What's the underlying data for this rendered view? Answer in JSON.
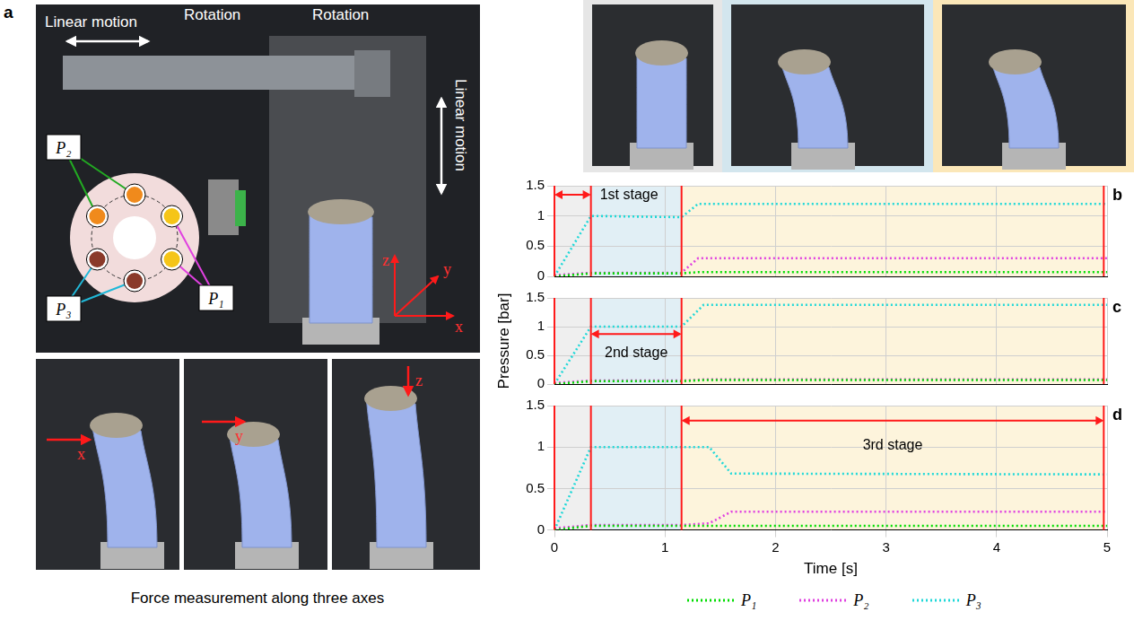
{
  "setup_photo": {
    "panel": "a",
    "labels": [
      "Linear motion",
      "Rotation",
      "Rotation",
      "Linear motion"
    ],
    "chambers": [
      "P₁",
      "P₂",
      "P₃"
    ],
    "axes": [
      "x",
      "y",
      "z"
    ]
  },
  "force_photos": {
    "axes": [
      "x",
      "y",
      "z"
    ],
    "caption": "Force measurement along three axes"
  },
  "chart_data": [
    {
      "type": "line",
      "panel": "b",
      "x": [
        0,
        0.33,
        1.15,
        1.3,
        5
      ],
      "series": [
        {
          "name": "P₁",
          "color": "#00dd00",
          "line_style": "dotted",
          "values": [
            0,
            0.05,
            0.05,
            0.07,
            0.07
          ]
        },
        {
          "name": "P₂",
          "color": "#e040e0",
          "line_style": "dotted",
          "values": [
            0.02,
            0.06,
            0.06,
            0.3,
            0.3
          ]
        },
        {
          "name": "P₃",
          "color": "#20d8d8",
          "line_style": "dotted",
          "values": [
            0,
            1,
            0.98,
            1.2,
            1.2
          ]
        }
      ],
      "xlim": [
        0,
        5
      ],
      "xticks": [
        0,
        1,
        2,
        3,
        4,
        5
      ],
      "ylim": [
        0,
        1.5
      ],
      "yticks": [
        0,
        0.5,
        1,
        1.5
      ],
      "grid": true,
      "tick_labels": "y",
      "stages": [
        0,
        0.33,
        1.15,
        4.97
      ],
      "stage_label": {
        "text": "1st stage",
        "from": 0,
        "to": 0.33
      }
    },
    {
      "type": "line",
      "panel": "c",
      "x": [
        0,
        0.33,
        1.15,
        1.35,
        5
      ],
      "series": [
        {
          "name": "P₁",
          "color": "#00dd00",
          "line_style": "dotted",
          "values": [
            0,
            0.05,
            0.05,
            0.07,
            0.07
          ]
        },
        {
          "name": "P₂",
          "color": "#e040e0",
          "line_style": "dotted",
          "values": [
            0.02,
            0.06,
            0.06,
            0.08,
            0.08
          ]
        },
        {
          "name": "P₃",
          "color": "#20d8d8",
          "line_style": "dotted",
          "values": [
            0,
            1,
            1,
            1.38,
            1.38
          ]
        }
      ],
      "xlim": [
        0,
        5
      ],
      "xticks": [
        0,
        1,
        2,
        3,
        4,
        5
      ],
      "ylim": [
        0,
        1.5
      ],
      "yticks": [
        0,
        0.5,
        1,
        1.5
      ],
      "y_label": "Pressure [bar]",
      "grid": true,
      "tick_labels": "y",
      "stages": [
        0,
        0.33,
        1.15,
        4.97
      ],
      "stage_label": {
        "text": "2nd stage",
        "from": 0.33,
        "to": 1.15
      }
    },
    {
      "type": "line",
      "panel": "d",
      "x": [
        0,
        0.33,
        1.15,
        1.4,
        1.6,
        5
      ],
      "series": [
        {
          "name": "P₁",
          "color": "#00dd00",
          "line_style": "dotted",
          "values": [
            0,
            0.05,
            0.05,
            0.05,
            0.05,
            0.05
          ]
        },
        {
          "name": "P₂",
          "color": "#e040e0",
          "line_style": "dotted",
          "values": [
            0.02,
            0.06,
            0.06,
            0.08,
            0.22,
            0.22
          ]
        },
        {
          "name": "P₃",
          "color": "#20d8d8",
          "line_style": "dotted",
          "values": [
            0,
            1,
            1,
            1,
            0.68,
            0.67
          ]
        }
      ],
      "xlim": [
        0,
        5
      ],
      "xticks": [
        0,
        1,
        2,
        3,
        4,
        5
      ],
      "ylim": [
        0,
        1.5
      ],
      "yticks": [
        0,
        0.5,
        1,
        1.5
      ],
      "x_label": "Time [s]",
      "legend": "bottom",
      "grid": true,
      "stages": [
        0,
        0.33,
        1.15,
        4.97
      ],
      "stage_label": {
        "text": "3rd stage",
        "from": 1.15,
        "to": 4.97
      }
    }
  ]
}
